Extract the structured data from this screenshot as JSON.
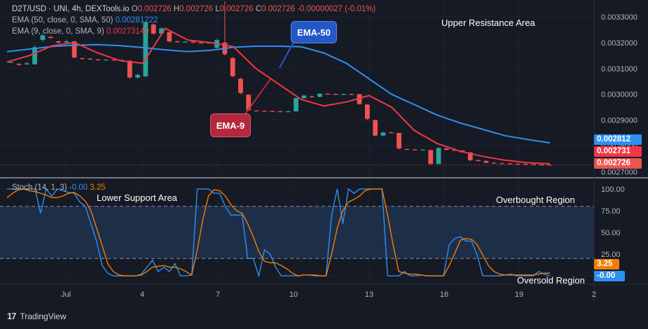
{
  "header": {
    "symbol_line": "D2T/USD · UNI, 4h, DEXTools.io",
    "ohlc": {
      "o_label": "O",
      "o": "0.002726",
      "h_label": "H",
      "h": "0.002726",
      "l_label": "L",
      "l": "0.002726",
      "c_label": "C",
      "c": "0.002726",
      "change": "-0.00000027 (-0.01%)"
    },
    "ema50_label": "EMA (50, close, 0, SMA, 50)",
    "ema50_value": "0.00281222",
    "ema9_label": "EMA (9, close, 0, SMA, 9)",
    "ema9_value": "0.00273140"
  },
  "stoch_legend": {
    "label": "Stoch (14, 1, 3)",
    "k": "-0.00",
    "d": "3.25"
  },
  "price_badges": {
    "ema50": "0.002812",
    "ema9": "0.002731",
    "last": "0.002726"
  },
  "stoch_badges": {
    "d": "3.25",
    "k": "-0.00"
  },
  "annotations": {
    "upper_resistance": "Upper Resistance Area",
    "lower_support": "Lower Support Area",
    "overbought": "Overbought Region",
    "oversold": "Oversold Region",
    "ema50_callout": "EMA-50",
    "ema9_callout": "EMA-9"
  },
  "footer": {
    "brand": "TradingView"
  },
  "colors": {
    "background": "#161a25",
    "up": "#26a69a",
    "down": "#ef5350",
    "ema50": "#2e8ff0",
    "ema9": "#f23645",
    "stoch_k": "#2e8ff0",
    "stoch_d": "#f57c00",
    "band": "#1e3350",
    "callout_blue": "#2458c9",
    "callout_red": "#b5283b"
  },
  "chart_data": [
    {
      "type": "candlestick",
      "title": "D2T/USD · UNI, 4h, DEXTools.io",
      "x_ticks": [
        "Jul",
        "4",
        "7",
        "10",
        "13",
        "16",
        "19",
        "2"
      ],
      "y_ticks": [
        0.0027,
        0.0028,
        0.0029,
        0.003,
        0.0031,
        0.0032,
        0.0033
      ],
      "ylim": [
        0.002682,
        0.003365
      ],
      "candles": [
        {
          "o": 0.003125,
          "h": 0.003128,
          "l": 0.003122,
          "c": 0.003125
        },
        {
          "o": 0.003118,
          "h": 0.00312,
          "l": 0.00311,
          "c": 0.003114
        },
        {
          "o": 0.003116,
          "h": 0.003125,
          "l": 0.003114,
          "c": 0.00312
        },
        {
          "o": 0.003116,
          "h": 0.00319,
          "l": 0.003114,
          "c": 0.003182
        },
        {
          "o": 0.00321,
          "h": 0.003235,
          "l": 0.003205,
          "c": 0.003228
        },
        {
          "o": 0.003222,
          "h": 0.003225,
          "l": 0.003216,
          "c": 0.003218
        },
        {
          "o": 0.003205,
          "h": 0.003208,
          "l": 0.003195,
          "c": 0.0032
        },
        {
          "o": 0.0032,
          "h": 0.003212,
          "l": 0.003198,
          "c": 0.003205
        },
        {
          "o": 0.003205,
          "h": 0.003207,
          "l": 0.00314,
          "c": 0.003142
        },
        {
          "o": 0.00314,
          "h": 0.003142,
          "l": 0.003134,
          "c": 0.003138
        },
        {
          "o": 0.003138,
          "h": 0.00314,
          "l": 0.003132,
          "c": 0.003135
        },
        {
          "o": 0.003135,
          "h": 0.003137,
          "l": 0.00313,
          "c": 0.003133
        },
        {
          "o": 0.003133,
          "h": 0.003136,
          "l": 0.00313,
          "c": 0.003134
        },
        {
          "o": 0.003134,
          "h": 0.003136,
          "l": 0.00313,
          "c": 0.003132
        },
        {
          "o": 0.003132,
          "h": 0.003135,
          "l": 0.00313,
          "c": 0.003133
        },
        {
          "o": 0.00313,
          "h": 0.003133,
          "l": 0.00306,
          "c": 0.003065
        },
        {
          "o": 0.003065,
          "h": 0.00308,
          "l": 0.00306,
          "c": 0.003075
        },
        {
          "o": 0.00307,
          "h": 0.00328,
          "l": 0.003065,
          "c": 0.003278
        },
        {
          "o": 0.00327,
          "h": 0.003275,
          "l": 0.00323,
          "c": 0.003235
        },
        {
          "o": 0.003235,
          "h": 0.00326,
          "l": 0.003232,
          "c": 0.003255
        },
        {
          "o": 0.00324,
          "h": 0.003245,
          "l": 0.0032,
          "c": 0.003205
        },
        {
          "o": 0.003205,
          "h": 0.003208,
          "l": 0.0032,
          "c": 0.003203
        },
        {
          "o": 0.003203,
          "h": 0.003206,
          "l": 0.0032,
          "c": 0.003204
        },
        {
          "o": 0.003204,
          "h": 0.003207,
          "l": 0.003198,
          "c": 0.0032
        },
        {
          "o": 0.0032,
          "h": 0.003203,
          "l": 0.003196,
          "c": 0.003198
        },
        {
          "o": 0.003198,
          "h": 0.003202,
          "l": 0.003196,
          "c": 0.0032
        },
        {
          "o": 0.00318,
          "h": 0.003215,
          "l": 0.003178,
          "c": 0.00321
        },
        {
          "o": 0.0032,
          "h": 0.00336,
          "l": 0.00315,
          "c": 0.003155
        },
        {
          "o": 0.00314,
          "h": 0.003145,
          "l": 0.003065,
          "c": 0.00307
        },
        {
          "o": 0.00306,
          "h": 0.003065,
          "l": 0.003,
          "c": 0.003005
        },
        {
          "o": 0.002998,
          "h": 0.003,
          "l": 0.002935,
          "c": 0.002938
        },
        {
          "o": 0.002937,
          "h": 0.002939,
          "l": 0.002934,
          "c": 0.002936
        },
        {
          "o": 0.002936,
          "h": 0.002938,
          "l": 0.002933,
          "c": 0.002935
        },
        {
          "o": 0.002935,
          "h": 0.002938,
          "l": 0.002932,
          "c": 0.002934
        },
        {
          "o": 0.002934,
          "h": 0.002937,
          "l": 0.002931,
          "c": 0.002933
        },
        {
          "o": 0.002933,
          "h": 0.002937,
          "l": 0.00293,
          "c": 0.002934
        },
        {
          "o": 0.002934,
          "h": 0.002988,
          "l": 0.002932,
          "c": 0.002985
        },
        {
          "o": 0.002985,
          "h": 0.002998,
          "l": 0.002982,
          "c": 0.002995
        },
        {
          "o": 0.002992,
          "h": 0.002995,
          "l": 0.002985,
          "c": 0.00299
        },
        {
          "o": 0.00299,
          "h": 0.003005,
          "l": 0.002988,
          "c": 0.003002
        },
        {
          "o": 0.003002,
          "h": 0.003004,
          "l": 0.002999,
          "c": 0.003001
        },
        {
          "o": 0.003001,
          "h": 0.003003,
          "l": 0.002998,
          "c": 0.003
        },
        {
          "o": 0.003,
          "h": 0.003003,
          "l": 0.002997,
          "c": 0.003001
        },
        {
          "o": 0.003001,
          "h": 0.003003,
          "l": 0.002997,
          "c": 0.002999
        },
        {
          "o": 0.003,
          "h": 0.003002,
          "l": 0.00296,
          "c": 0.002962
        },
        {
          "o": 0.00296,
          "h": 0.002962,
          "l": 0.0029,
          "c": 0.002905
        },
        {
          "o": 0.0029,
          "h": 0.002902,
          "l": 0.002838,
          "c": 0.00284
        },
        {
          "o": 0.00284,
          "h": 0.002855,
          "l": 0.002838,
          "c": 0.002852
        },
        {
          "o": 0.002852,
          "h": 0.002855,
          "l": 0.002849,
          "c": 0.002851
        },
        {
          "o": 0.00285,
          "h": 0.002852,
          "l": 0.002787,
          "c": 0.00279
        },
        {
          "o": 0.002788,
          "h": 0.00279,
          "l": 0.002784,
          "c": 0.002786
        },
        {
          "o": 0.002786,
          "h": 0.002789,
          "l": 0.002783,
          "c": 0.002785
        },
        {
          "o": 0.002785,
          "h": 0.002788,
          "l": 0.002782,
          "c": 0.002786
        },
        {
          "o": 0.002784,
          "h": 0.002786,
          "l": 0.002728,
          "c": 0.00273
        },
        {
          "o": 0.00273,
          "h": 0.002795,
          "l": 0.002728,
          "c": 0.002792
        },
        {
          "o": 0.00279,
          "h": 0.002792,
          "l": 0.002782,
          "c": 0.002785
        },
        {
          "o": 0.002785,
          "h": 0.002787,
          "l": 0.00278,
          "c": 0.002782
        },
        {
          "o": 0.002782,
          "h": 0.002784,
          "l": 0.002773,
          "c": 0.002775
        },
        {
          "o": 0.002775,
          "h": 0.002777,
          "l": 0.00274,
          "c": 0.002745
        },
        {
          "o": 0.002745,
          "h": 0.002747,
          "l": 0.00274,
          "c": 0.002742
        },
        {
          "o": 0.002742,
          "h": 0.002744,
          "l": 0.002733,
          "c": 0.002735
        },
        {
          "o": 0.002735,
          "h": 0.002737,
          "l": 0.002731,
          "c": 0.002733
        },
        {
          "o": 0.002733,
          "h": 0.002735,
          "l": 0.00273,
          "c": 0.002732
        },
        {
          "o": 0.002732,
          "h": 0.002734,
          "l": 0.002729,
          "c": 0.002731
        },
        {
          "o": 0.002731,
          "h": 0.002733,
          "l": 0.002729,
          "c": 0.00273
        },
        {
          "o": 0.00273,
          "h": 0.002732,
          "l": 0.002728,
          "c": 0.002729
        },
        {
          "o": 0.002729,
          "h": 0.002731,
          "l": 0.002727,
          "c": 0.002728
        },
        {
          "o": 0.002728,
          "h": 0.00273,
          "l": 0.002726,
          "c": 0.002727
        },
        {
          "o": 0.002727,
          "h": 0.002729,
          "l": 0.002725,
          "c": 0.002726
        }
      ],
      "series": [
        {
          "name": "EMA (50, close, 0, SMA, 50)",
          "values": [
            0.003165,
            0.003175,
            0.003185,
            0.00319,
            0.003192,
            0.003188,
            0.003181,
            0.003172,
            0.003165,
            0.00317,
            0.003182,
            0.003186,
            0.003186,
            0.003184,
            0.00316,
            0.00312,
            0.00306,
            0.003,
            0.00296,
            0.00292,
            0.00289,
            0.002865,
            0.00284,
            0.002825,
            0.002812
          ]
        },
        {
          "name": "EMA (9, close, 0, SMA, 9)",
          "values": [
            0.003125,
            0.00315,
            0.003188,
            0.0032,
            0.00316,
            0.00313,
            0.00312,
            0.003255,
            0.00321,
            0.0032,
            0.003185,
            0.0031,
            0.00304,
            0.00298,
            0.002955,
            0.00297,
            0.002995,
            0.00295,
            0.00286,
            0.00281,
            0.00278,
            0.00276,
            0.002745,
            0.002735,
            0.002731
          ]
        }
      ]
    },
    {
      "type": "line",
      "title": "Stoch (14, 1, 3)",
      "x_ticks": [
        "Jul",
        "4",
        "7",
        "10",
        "13",
        "16",
        "19",
        "2"
      ],
      "ylim": [
        -8,
        108
      ],
      "y_ticks": [
        0,
        25,
        50,
        75,
        100
      ],
      "bands": {
        "upper": 80,
        "lower": 20
      },
      "series": [
        {
          "name": "%K",
          "values": [
            100,
            100,
            100,
            100,
            100,
            100,
            72,
            100,
            92,
            100,
            98,
            96,
            95,
            85,
            80,
            60,
            40,
            12,
            3,
            0,
            0,
            0,
            0,
            0,
            2,
            10,
            18,
            5,
            10,
            5,
            14,
            0,
            0,
            1,
            100,
            100,
            100,
            95,
            95,
            80,
            70,
            70,
            70,
            20,
            20,
            0,
            30,
            25,
            10,
            0,
            0,
            0,
            0,
            1,
            1,
            0,
            0,
            0,
            70,
            100,
            60,
            100,
            95,
            100,
            100,
            100,
            100,
            100,
            0,
            0,
            0,
            5,
            0,
            0,
            1,
            0,
            0,
            0,
            0,
            36,
            43,
            45,
            40,
            40,
            24,
            0,
            0,
            0,
            0,
            1,
            2,
            0,
            0,
            0,
            0,
            5,
            2,
            0
          ]
        },
        {
          "name": "%D",
          "values": [
            90,
            95,
            99,
            100,
            98,
            97,
            95,
            93,
            90,
            90,
            92,
            95,
            96,
            92,
            86,
            75,
            55,
            35,
            14,
            5,
            1,
            0,
            0,
            0,
            1,
            5,
            10,
            11,
            12,
            10,
            10,
            8,
            5,
            1,
            30,
            65,
            92,
            99,
            98,
            92,
            82,
            75,
            72,
            60,
            45,
            28,
            17,
            15,
            15,
            12,
            8,
            3,
            0,
            1,
            1,
            1,
            0,
            0,
            25,
            55,
            75,
            85,
            88,
            92,
            98,
            100,
            100,
            100,
            70,
            35,
            5,
            3,
            2,
            2,
            1,
            0,
            0,
            0,
            0,
            12,
            26,
            41,
            43,
            42,
            36,
            24,
            12,
            5,
            2,
            1,
            1,
            1,
            1,
            1,
            1,
            2,
            3,
            3.25
          ]
        }
      ]
    }
  ]
}
